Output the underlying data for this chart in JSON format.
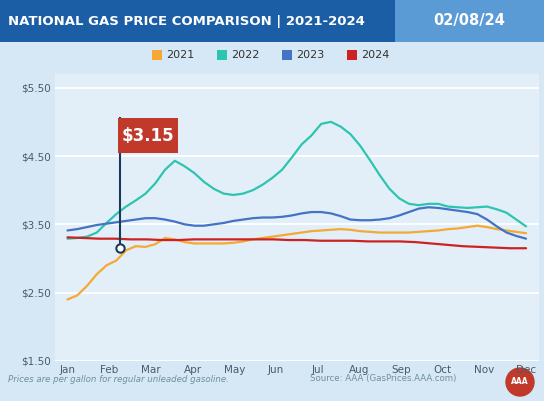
{
  "title": "NATIONAL GAS PRICE COMPARISON | 2021-2024",
  "date_label": "02/08/24",
  "title_bg": "#1B5EA6",
  "date_bg": "#5B9BD5",
  "bg_color": "#D6E8F5",
  "plot_bg": "#E2EFF8",
  "ylabel_ticks": [
    "$1.50",
    "$2.50",
    "$3.50",
    "$4.50",
    "$5.50"
  ],
  "yticks": [
    1.5,
    2.5,
    3.5,
    4.5,
    5.5
  ],
  "ylim": [
    1.5,
    5.7
  ],
  "months": [
    "Jan",
    "Feb",
    "Mar",
    "Apr",
    "May",
    "Jun",
    "Jul",
    "Aug",
    "Sep",
    "Oct",
    "Nov",
    "Dec"
  ],
  "annotation_text": "$3.15",
  "annotation_color": "#C0392B",
  "footer_left": "Prices are per gallon for regular unleaded gasoline.",
  "footer_right": "Source: AAA (GasPrices.AAA.com)",
  "series": [
    {
      "label": "2021",
      "color": "#F5A833",
      "values": [
        2.4,
        2.46,
        2.6,
        2.77,
        2.9,
        2.97,
        3.12,
        3.18,
        3.17,
        3.21,
        3.3,
        3.28,
        3.24,
        3.22,
        3.22,
        3.22,
        3.22,
        3.23,
        3.25,
        3.28,
        3.3,
        3.32,
        3.34,
        3.36,
        3.38,
        3.4,
        3.41,
        3.42,
        3.43,
        3.42,
        3.4,
        3.39,
        3.38,
        3.38,
        3.38,
        3.38,
        3.39,
        3.4,
        3.41,
        3.43,
        3.44,
        3.46,
        3.48,
        3.46,
        3.43,
        3.41,
        3.39,
        3.37
      ]
    },
    {
      "label": "2022",
      "color": "#2DC5B0",
      "values": [
        3.29,
        3.3,
        3.32,
        3.38,
        3.52,
        3.65,
        3.76,
        3.85,
        3.95,
        4.1,
        4.3,
        4.43,
        4.35,
        4.25,
        4.12,
        4.02,
        3.95,
        3.93,
        3.95,
        4.0,
        4.08,
        4.18,
        4.3,
        4.48,
        4.67,
        4.8,
        4.97,
        5.0,
        4.93,
        4.82,
        4.65,
        4.44,
        4.22,
        4.02,
        3.88,
        3.8,
        3.78,
        3.8,
        3.8,
        3.76,
        3.75,
        3.74,
        3.75,
        3.76,
        3.72,
        3.67,
        3.57,
        3.47
      ]
    },
    {
      "label": "2023",
      "color": "#4472C4",
      "values": [
        3.41,
        3.43,
        3.46,
        3.49,
        3.51,
        3.53,
        3.55,
        3.57,
        3.59,
        3.59,
        3.57,
        3.54,
        3.5,
        3.48,
        3.48,
        3.5,
        3.52,
        3.55,
        3.57,
        3.59,
        3.6,
        3.6,
        3.61,
        3.63,
        3.66,
        3.68,
        3.68,
        3.66,
        3.62,
        3.57,
        3.56,
        3.56,
        3.57,
        3.59,
        3.63,
        3.68,
        3.73,
        3.75,
        3.74,
        3.72,
        3.7,
        3.68,
        3.65,
        3.57,
        3.47,
        3.38,
        3.33,
        3.29
      ]
    },
    {
      "label": "2024",
      "color": "#CC2222",
      "values": [
        3.31,
        3.3,
        3.29,
        3.29,
        3.28,
        3.28,
        3.27,
        3.27,
        3.28,
        3.28,
        3.28,
        3.28,
        3.28,
        3.28,
        3.27,
        3.27,
        3.26,
        3.26,
        3.26,
        3.25,
        3.25,
        3.25,
        3.24,
        3.22,
        3.2,
        3.18,
        3.17,
        3.16,
        3.15,
        3.15
      ]
    }
  ]
}
